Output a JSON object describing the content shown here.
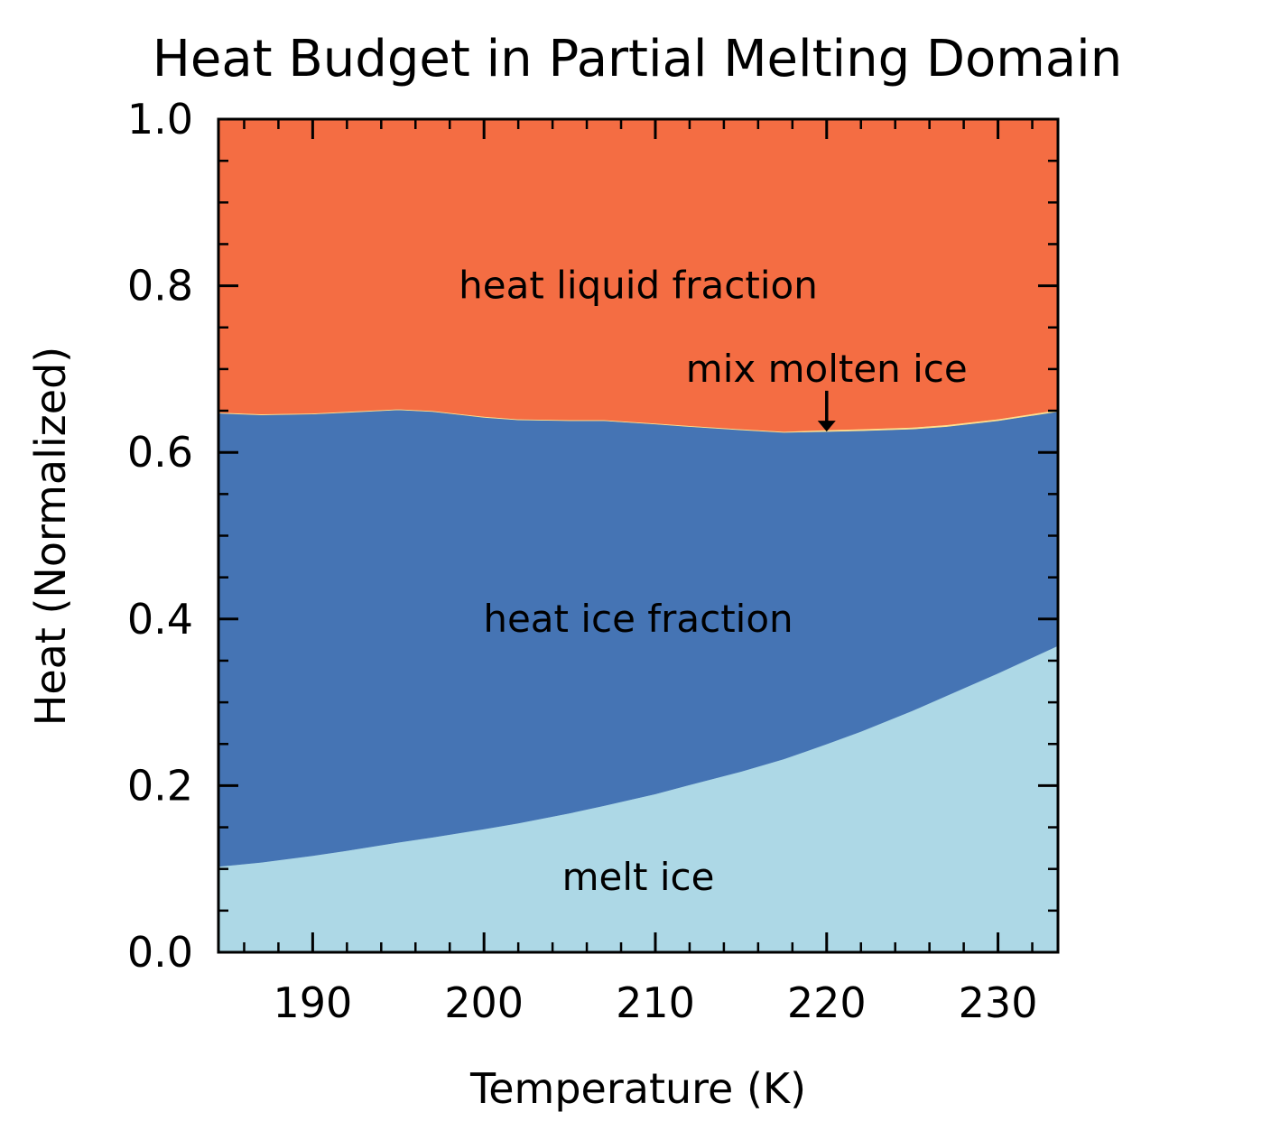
{
  "chart_data": {
    "type": "area",
    "stacked": true,
    "title": "Heat Budget in Partial Melting Domain",
    "xlabel": "Temperature (K)",
    "ylabel": "Heat (Normalized)",
    "xlim": [
      184.5,
      233.5
    ],
    "ylim": [
      0.0,
      1.0
    ],
    "xticks": [
      190,
      200,
      210,
      220,
      230
    ],
    "xtick_labels": [
      "190",
      "200",
      "210",
      "220",
      "230"
    ],
    "yticks": [
      0.0,
      0.2,
      0.4,
      0.6,
      0.8,
      1.0
    ],
    "ytick_labels": [
      "0.0",
      "0.2",
      "0.4",
      "0.6",
      "0.8",
      "1.0"
    ],
    "x_minor_step": 2,
    "y_minor_step": 0.05,
    "grid": false,
    "legend": "none",
    "x": [
      184.5,
      187,
      190,
      192,
      195,
      197,
      200,
      202,
      205,
      207,
      210,
      212,
      215,
      217.5,
      220,
      222,
      225,
      227,
      230,
      233.5
    ],
    "series": [
      {
        "name": "melt ice",
        "color": "#add8e6",
        "values": [
          0.103,
          0.108,
          0.116,
          0.122,
          0.132,
          0.138,
          0.148,
          0.155,
          0.167,
          0.176,
          0.19,
          0.201,
          0.217,
          0.232,
          0.25,
          0.265,
          0.29,
          0.308,
          0.335,
          0.368
        ]
      },
      {
        "name": "heat ice fraction",
        "color": "#4574b4",
        "values": [
          0.544,
          0.537,
          0.53,
          0.526,
          0.519,
          0.511,
          0.494,
          0.484,
          0.471,
          0.462,
          0.444,
          0.43,
          0.41,
          0.392,
          0.375,
          0.361,
          0.338,
          0.323,
          0.303,
          0.281
        ]
      },
      {
        "name": "mix molten ice",
        "color": "#fee090",
        "values": [
          0.001,
          0.001,
          0.001,
          0.001,
          0.001,
          0.001,
          0.001,
          0.001,
          0.001,
          0.001,
          0.001,
          0.001,
          0.001,
          0.001,
          0.002,
          0.002,
          0.002,
          0.002,
          0.002,
          0.002
        ]
      },
      {
        "name": "heat liquid fraction",
        "color": "#f46d43",
        "values": [
          0.352,
          0.354,
          0.353,
          0.351,
          0.348,
          0.35,
          0.357,
          0.36,
          0.361,
          0.361,
          0.365,
          0.368,
          0.372,
          0.375,
          0.373,
          0.372,
          0.37,
          0.367,
          0.36,
          0.349
        ]
      }
    ],
    "annotations": [
      {
        "text": "heat liquid fraction",
        "x": 209,
        "y": 0.8
      },
      {
        "text": "mix molten ice",
        "x": 220,
        "y": 0.7,
        "arrow_to": [
          220,
          0.625
        ]
      },
      {
        "text": "heat ice fraction",
        "x": 209,
        "y": 0.4
      },
      {
        "text": "melt ice",
        "x": 209,
        "y": 0.09
      }
    ]
  }
}
